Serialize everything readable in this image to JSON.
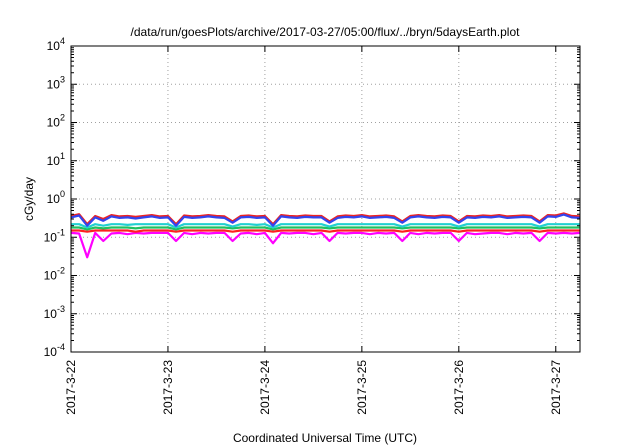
{
  "chart_data": {
    "type": "line",
    "title": "/data/run/goesPlots/archive/2017-03-27/05:00/flux/../bryn/5daysEarth.plot",
    "xlabel": "Coordinated Universal Time (UTC)",
    "ylabel": "cGy/day",
    "yscale": "log",
    "ylim": [
      0.0001,
      10000
    ],
    "y_ticks": [
      {
        "value": 0.0001,
        "base": "10",
        "exp": "-4"
      },
      {
        "value": 0.001,
        "base": "10",
        "exp": "-3"
      },
      {
        "value": 0.01,
        "base": "10",
        "exp": "-2"
      },
      {
        "value": 0.1,
        "base": "10",
        "exp": "-1"
      },
      {
        "value": 1,
        "base": "10",
        "exp": "0"
      },
      {
        "value": 10,
        "base": "10",
        "exp": "1"
      },
      {
        "value": 100,
        "base": "10",
        "exp": "2"
      },
      {
        "value": 1000,
        "base": "10",
        "exp": "3"
      },
      {
        "value": 10000,
        "base": "10",
        "exp": "4"
      }
    ],
    "xlim": [
      "2017-03-22 00:00",
      "2017-03-27 06:00"
    ],
    "x_ticks": [
      "2017-3-22",
      "2017-3-23",
      "2017-3-24",
      "2017-3-25",
      "2017-3-26",
      "2017-3-27"
    ],
    "grid": true,
    "legend": "none",
    "x": [
      "2017-03-22 00:00",
      "2017-03-22 02:00",
      "2017-03-22 04:00",
      "2017-03-22 06:00",
      "2017-03-22 08:00",
      "2017-03-22 10:00",
      "2017-03-22 12:00",
      "2017-03-22 14:00",
      "2017-03-22 16:00",
      "2017-03-22 18:00",
      "2017-03-22 20:00",
      "2017-03-22 22:00",
      "2017-03-23 00:00",
      "2017-03-23 02:00",
      "2017-03-23 04:00",
      "2017-03-23 06:00",
      "2017-03-23 08:00",
      "2017-03-23 10:00",
      "2017-03-23 12:00",
      "2017-03-23 14:00",
      "2017-03-23 16:00",
      "2017-03-23 18:00",
      "2017-03-23 20:00",
      "2017-03-23 22:00",
      "2017-03-24 00:00",
      "2017-03-24 02:00",
      "2017-03-24 04:00",
      "2017-03-24 06:00",
      "2017-03-24 08:00",
      "2017-03-24 10:00",
      "2017-03-24 12:00",
      "2017-03-24 14:00",
      "2017-03-24 16:00",
      "2017-03-24 18:00",
      "2017-03-24 20:00",
      "2017-03-24 22:00",
      "2017-03-25 00:00",
      "2017-03-25 02:00",
      "2017-03-25 04:00",
      "2017-03-25 06:00",
      "2017-03-25 08:00",
      "2017-03-25 10:00",
      "2017-03-25 12:00",
      "2017-03-25 14:00",
      "2017-03-25 16:00",
      "2017-03-25 18:00",
      "2017-03-25 20:00",
      "2017-03-25 22:00",
      "2017-03-26 00:00",
      "2017-03-26 02:00",
      "2017-03-26 04:00",
      "2017-03-26 06:00",
      "2017-03-26 08:00",
      "2017-03-26 10:00",
      "2017-03-26 12:00",
      "2017-03-26 14:00",
      "2017-03-26 16:00",
      "2017-03-26 18:00",
      "2017-03-26 20:00",
      "2017-03-26 22:00",
      "2017-03-27 00:00",
      "2017-03-27 02:00",
      "2017-03-27 04:00",
      "2017-03-27 06:00"
    ],
    "series": [
      {
        "color": "#ff00ff",
        "values": [
          0.13,
          0.125,
          0.03,
          0.13,
          0.08,
          0.125,
          0.13,
          0.12,
          0.13,
          0.125,
          0.13,
          0.13,
          0.13,
          0.08,
          0.13,
          0.12,
          0.13,
          0.125,
          0.13,
          0.13,
          0.08,
          0.125,
          0.13,
          0.12,
          0.13,
          0.07,
          0.13,
          0.125,
          0.13,
          0.13,
          0.12,
          0.13,
          0.08,
          0.13,
          0.125,
          0.13,
          0.13,
          0.12,
          0.13,
          0.125,
          0.13,
          0.08,
          0.13,
          0.12,
          0.13,
          0.125,
          0.13,
          0.13,
          0.08,
          0.13,
          0.12,
          0.125,
          0.13,
          0.13,
          0.12,
          0.13,
          0.125,
          0.13,
          0.08,
          0.13,
          0.125,
          0.13,
          0.125,
          0.13
        ]
      },
      {
        "color": "#ff2020",
        "values": [
          0.15,
          0.15,
          0.14,
          0.15,
          0.15,
          0.15,
          0.15,
          0.15,
          0.14,
          0.15,
          0.15,
          0.15,
          0.15,
          0.14,
          0.15,
          0.15,
          0.15,
          0.15,
          0.15,
          0.15,
          0.14,
          0.15,
          0.15,
          0.15,
          0.15,
          0.14,
          0.15,
          0.15,
          0.15,
          0.15,
          0.15,
          0.15,
          0.14,
          0.15,
          0.15,
          0.15,
          0.15,
          0.15,
          0.15,
          0.15,
          0.15,
          0.14,
          0.15,
          0.15,
          0.15,
          0.15,
          0.15,
          0.15,
          0.14,
          0.15,
          0.15,
          0.15,
          0.15,
          0.15,
          0.15,
          0.15,
          0.15,
          0.15,
          0.14,
          0.15,
          0.15,
          0.15,
          0.15,
          0.15
        ]
      },
      {
        "color": "#20c060",
        "values": [
          0.18,
          0.18,
          0.16,
          0.18,
          0.17,
          0.18,
          0.18,
          0.18,
          0.17,
          0.18,
          0.18,
          0.18,
          0.18,
          0.16,
          0.18,
          0.18,
          0.18,
          0.18,
          0.18,
          0.18,
          0.17,
          0.18,
          0.18,
          0.18,
          0.18,
          0.16,
          0.18,
          0.18,
          0.18,
          0.18,
          0.18,
          0.18,
          0.17,
          0.18,
          0.18,
          0.18,
          0.18,
          0.18,
          0.18,
          0.18,
          0.18,
          0.17,
          0.18,
          0.18,
          0.18,
          0.18,
          0.18,
          0.18,
          0.17,
          0.18,
          0.18,
          0.18,
          0.18,
          0.18,
          0.18,
          0.18,
          0.18,
          0.18,
          0.17,
          0.18,
          0.18,
          0.18,
          0.18,
          0.18
        ]
      },
      {
        "color": "#20d0d0",
        "values": [
          0.22,
          0.22,
          0.18,
          0.22,
          0.2,
          0.22,
          0.22,
          0.21,
          0.22,
          0.22,
          0.22,
          0.22,
          0.22,
          0.18,
          0.22,
          0.22,
          0.22,
          0.22,
          0.22,
          0.22,
          0.19,
          0.22,
          0.22,
          0.21,
          0.22,
          0.18,
          0.22,
          0.22,
          0.22,
          0.22,
          0.22,
          0.22,
          0.19,
          0.22,
          0.22,
          0.22,
          0.22,
          0.22,
          0.22,
          0.22,
          0.22,
          0.19,
          0.22,
          0.22,
          0.22,
          0.22,
          0.22,
          0.22,
          0.19,
          0.22,
          0.22,
          0.22,
          0.22,
          0.22,
          0.22,
          0.22,
          0.22,
          0.22,
          0.19,
          0.22,
          0.22,
          0.22,
          0.22,
          0.22
        ]
      },
      {
        "color": "#ee2222",
        "values": [
          0.36,
          0.4,
          0.22,
          0.36,
          0.3,
          0.38,
          0.35,
          0.36,
          0.34,
          0.36,
          0.38,
          0.35,
          0.36,
          0.22,
          0.37,
          0.35,
          0.36,
          0.38,
          0.36,
          0.35,
          0.26,
          0.36,
          0.37,
          0.35,
          0.36,
          0.22,
          0.38,
          0.36,
          0.35,
          0.37,
          0.36,
          0.36,
          0.26,
          0.35,
          0.37,
          0.36,
          0.38,
          0.35,
          0.36,
          0.37,
          0.35,
          0.26,
          0.36,
          0.38,
          0.36,
          0.35,
          0.37,
          0.36,
          0.26,
          0.36,
          0.35,
          0.37,
          0.36,
          0.38,
          0.35,
          0.36,
          0.37,
          0.36,
          0.26,
          0.38,
          0.37,
          0.42,
          0.36,
          0.35
        ]
      },
      {
        "color": "#3344ee",
        "values": [
          0.33,
          0.37,
          0.2,
          0.33,
          0.27,
          0.35,
          0.32,
          0.33,
          0.31,
          0.33,
          0.35,
          0.32,
          0.33,
          0.2,
          0.34,
          0.32,
          0.33,
          0.35,
          0.33,
          0.32,
          0.24,
          0.33,
          0.34,
          0.32,
          0.33,
          0.2,
          0.35,
          0.33,
          0.32,
          0.34,
          0.33,
          0.33,
          0.24,
          0.32,
          0.34,
          0.33,
          0.35,
          0.32,
          0.33,
          0.34,
          0.32,
          0.24,
          0.33,
          0.35,
          0.33,
          0.32,
          0.34,
          0.33,
          0.24,
          0.33,
          0.32,
          0.34,
          0.33,
          0.35,
          0.32,
          0.33,
          0.34,
          0.33,
          0.24,
          0.35,
          0.34,
          0.39,
          0.33,
          0.32
        ]
      }
    ]
  }
}
